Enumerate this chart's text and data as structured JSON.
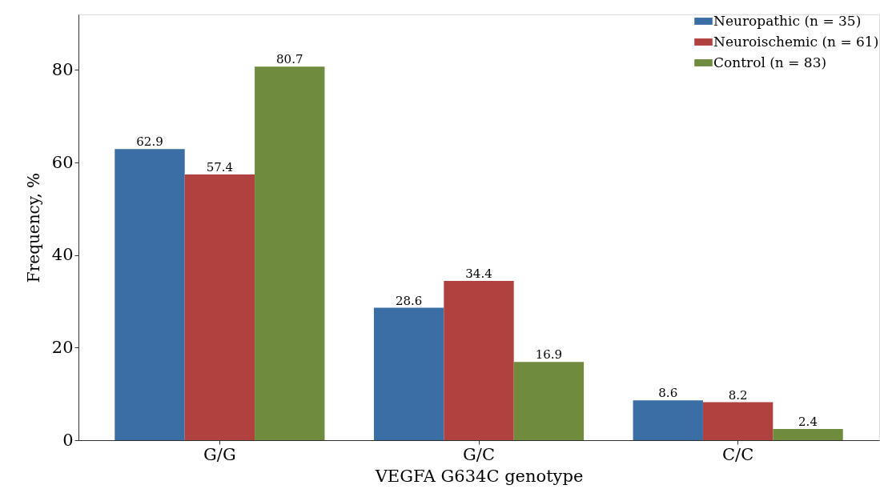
{
  "chart_data": {
    "type": "bar",
    "xlabel": "VEGFA G634C genotype",
    "ylabel": "Frequency, %",
    "categories": [
      "G/G",
      "G/C",
      "C/C"
    ],
    "series": [
      {
        "name": "Neuropathic (n = 35)",
        "color": "#3a6ea5",
        "values": [
          62.9,
          28.6,
          8.6
        ]
      },
      {
        "name": "Neuroischemic (n = 61)",
        "color": "#b0413e",
        "values": [
          57.4,
          34.4,
          8.2
        ]
      },
      {
        "name": "Control (n = 83)",
        "color": "#6f8b3d",
        "values": [
          80.7,
          16.9,
          2.4
        ]
      }
    ],
    "ylim": [
      0,
      92
    ],
    "yticks": [
      0,
      20,
      40,
      60,
      80
    ],
    "data_labels": true,
    "legend": "top right",
    "grid": false
  }
}
